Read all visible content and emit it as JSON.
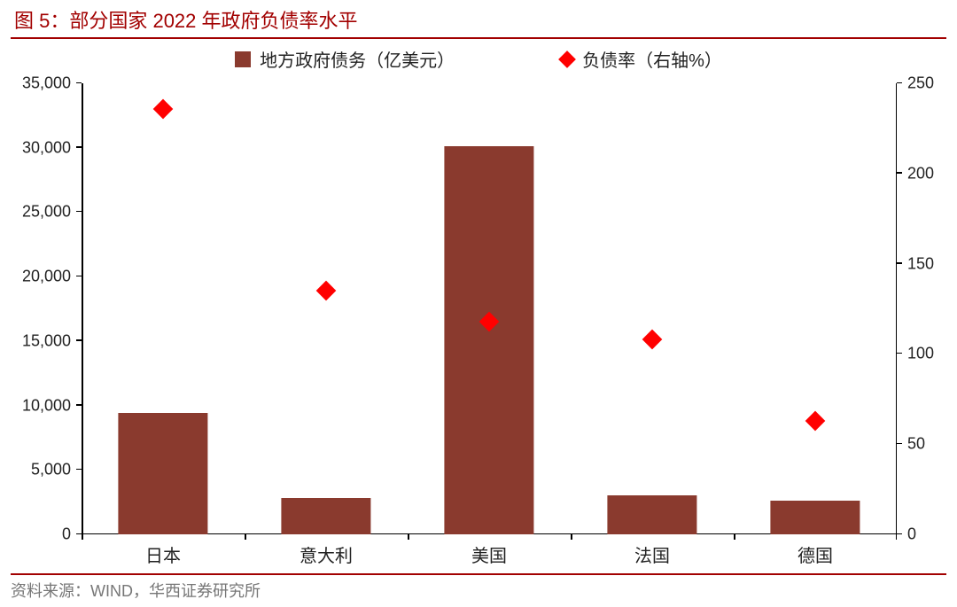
{
  "title": "图 5：部分国家 2022 年政府负债率水平",
  "source": "资料来源：WIND，华西证券研究所",
  "legend": {
    "bar_label": "地方政府债务（亿美元）",
    "marker_label": "负债率（右轴%）"
  },
  "chart": {
    "type": "bar+scatter",
    "categories": [
      "日本",
      "意大利",
      "美国",
      "法国",
      "德国"
    ],
    "bars": {
      "values": [
        9400,
        2800,
        30100,
        3000,
        2600
      ],
      "color": "#8a3a2e",
      "width_ratio": 0.55
    },
    "markers": {
      "values": [
        236,
        135,
        118,
        108,
        63
      ],
      "color": "#ff0000",
      "shape": "diamond",
      "size": 16
    },
    "y_left": {
      "min": 0,
      "max": 35000,
      "step": 5000,
      "ticks": [
        "0",
        "5,000",
        "10,000",
        "15,000",
        "20,000",
        "25,000",
        "30,000",
        "35,000"
      ]
    },
    "y_right": {
      "min": 0,
      "max": 250,
      "step": 50,
      "ticks": [
        "0",
        "50",
        "100",
        "150",
        "200",
        "250"
      ]
    },
    "axis_color": "#000000",
    "background_color": "#ffffff",
    "label_fontsize": 20,
    "tick_fontsize": 18
  },
  "colors": {
    "accent": "#a20000",
    "footer_text": "#777777"
  }
}
